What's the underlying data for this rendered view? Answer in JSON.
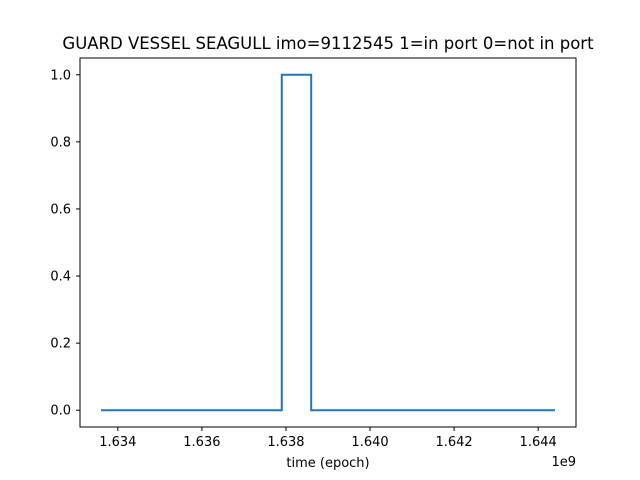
{
  "chart_data": {
    "type": "line",
    "title": "GUARD VESSEL SEAGULL imo=9112545 1=in port 0=not in port",
    "xlabel": "time (epoch)",
    "ylabel": "",
    "x_offset_label": "1e9",
    "xlim": [
      1.6331,
      1.6449
    ],
    "ylim": [
      -0.05,
      1.05
    ],
    "x_ticks": [
      1.634,
      1.636,
      1.638,
      1.64,
      1.642,
      1.644
    ],
    "x_tick_labels": [
      "1.634",
      "1.636",
      "1.638",
      "1.640",
      "1.642",
      "1.644"
    ],
    "y_ticks": [
      0.0,
      0.2,
      0.4,
      0.6,
      0.8,
      1.0
    ],
    "y_tick_labels": [
      "0.0",
      "0.2",
      "0.4",
      "0.6",
      "0.8",
      "1.0"
    ],
    "grid": false,
    "series": [
      {
        "color": "#1f77b4",
        "x": [
          1.6336,
          1.6379,
          1.6379,
          1.6386,
          1.6386,
          1.6444
        ],
        "y": [
          0,
          0,
          1,
          1,
          0,
          0
        ]
      }
    ]
  }
}
